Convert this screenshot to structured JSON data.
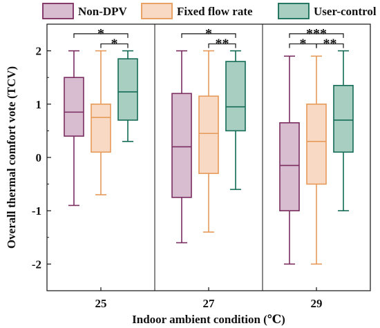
{
  "chart_data": {
    "type": "box",
    "xlabel": "Indoor ambient condition (℃)",
    "ylabel": "Overall thermal comfort vote (TCV)",
    "ylim": [
      -2.5,
      2.5
    ],
    "yticks": [
      "-2",
      "-1",
      "0",
      "1",
      "2"
    ],
    "ytick_values": [
      -2,
      -1,
      0,
      1,
      2
    ],
    "grid": false,
    "legend_position": "top",
    "categories": [
      "25",
      "27",
      "29"
    ],
    "series": [
      {
        "name": "Non-DPV",
        "color": "#7a2c60",
        "fill": "#d8bdd0",
        "boxes": [
          {
            "min": -0.9,
            "q1": 0.4,
            "median": 0.85,
            "q3": 1.5,
            "max": 2.0
          },
          {
            "min": -1.6,
            "q1": -0.75,
            "median": 0.2,
            "q3": 1.2,
            "max": 2.0
          },
          {
            "min": -2.0,
            "q1": -1.0,
            "median": -0.15,
            "q3": 0.65,
            "max": 1.9
          }
        ]
      },
      {
        "name": "Fixed flow rate",
        "color": "#e69a59",
        "fill": "#f8dac4",
        "boxes": [
          {
            "min": -0.7,
            "q1": 0.1,
            "median": 0.75,
            "q3": 1.0,
            "max": 2.0
          },
          {
            "min": -1.4,
            "q1": -0.3,
            "median": 0.45,
            "q3": 1.15,
            "max": 2.0
          },
          {
            "min": -2.0,
            "q1": -0.5,
            "median": 0.3,
            "q3": 1.0,
            "max": 1.9
          }
        ]
      },
      {
        "name": "User-control",
        "color": "#136b55",
        "fill": "#a8cec2",
        "boxes": [
          {
            "min": 0.3,
            "q1": 0.7,
            "median": 1.23,
            "q3": 1.85,
            "max": 2.0
          },
          {
            "min": -0.6,
            "q1": 0.5,
            "median": 0.95,
            "q3": 1.8,
            "max": 2.0
          },
          {
            "min": -1.0,
            "q1": 0.1,
            "median": 0.7,
            "q3": 1.35,
            "max": 2.0
          }
        ]
      }
    ],
    "significance": [
      {
        "group": 0,
        "from": 0,
        "to": 2,
        "label": "*",
        "level": 2
      },
      {
        "group": 0,
        "from": 1,
        "to": 2,
        "label": "*",
        "level": 1
      },
      {
        "group": 1,
        "from": 0,
        "to": 2,
        "label": "*",
        "level": 2
      },
      {
        "group": 1,
        "from": 1,
        "to": 2,
        "label": "**",
        "level": 1
      },
      {
        "group": 2,
        "from": 0,
        "to": 2,
        "label": "***",
        "level": 2
      },
      {
        "group": 2,
        "from": 0,
        "to": 1,
        "label": "*",
        "level": 1
      },
      {
        "group": 2,
        "from": 1,
        "to": 2,
        "label": "**",
        "level": 1
      }
    ]
  }
}
